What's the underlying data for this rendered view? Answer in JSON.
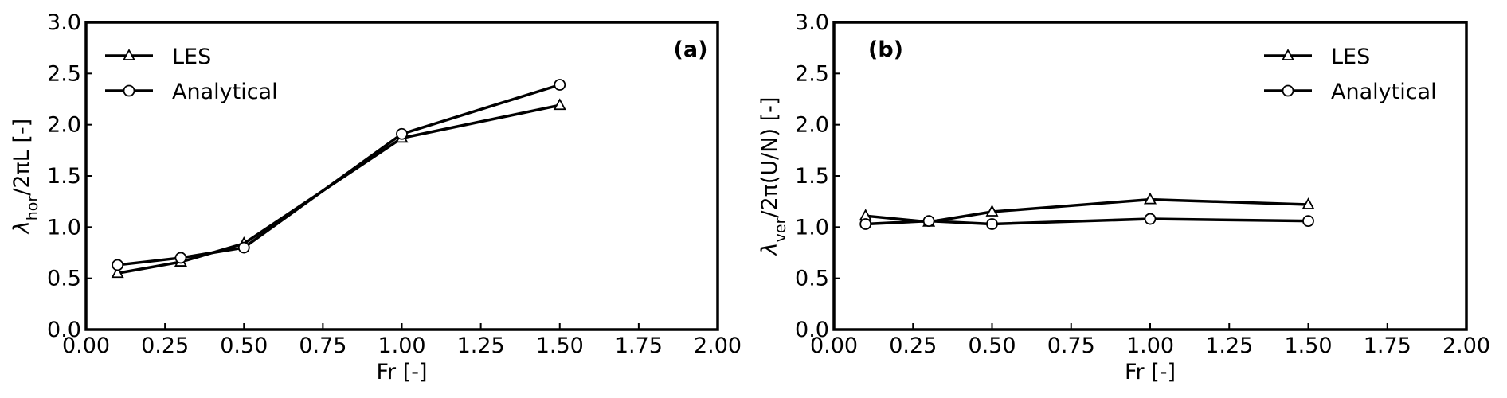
{
  "chart_data": [
    {
      "type": "line",
      "panel_label": "(a)",
      "xlabel": "Fr [-]",
      "ylabel": {
        "base": "λ",
        "sub": "hor",
        "rest": "/2πL [-]"
      },
      "xlim": [
        0.0,
        2.0
      ],
      "ylim": [
        0.0,
        3.0
      ],
      "xticks": [
        "0.00",
        "0.25",
        "0.50",
        "0.75",
        "1.00",
        "1.25",
        "1.50",
        "1.75",
        "2.00"
      ],
      "yticks": [
        "0.0",
        "0.5",
        "1.0",
        "1.5",
        "2.0",
        "2.5",
        "3.0"
      ],
      "grid": false,
      "legend_position": "top-left",
      "series": [
        {
          "name": "LES",
          "marker": "triangle",
          "x": [
            0.1,
            0.3,
            0.5,
            1.0,
            1.5
          ],
          "y": [
            0.55,
            0.66,
            0.84,
            1.87,
            2.19
          ]
        },
        {
          "name": "Analytical",
          "marker": "circle",
          "x": [
            0.1,
            0.3,
            0.5,
            1.0,
            1.5
          ],
          "y": [
            0.63,
            0.7,
            0.8,
            1.91,
            2.39
          ]
        }
      ]
    },
    {
      "type": "line",
      "panel_label": "(b)",
      "xlabel": "Fr [-]",
      "ylabel": {
        "base": "λ",
        "sub": "ver",
        "rest": "/2π(U/N) [-]"
      },
      "xlim": [
        0.0,
        2.0
      ],
      "ylim": [
        0.0,
        3.0
      ],
      "xticks": [
        "0.00",
        "0.25",
        "0.50",
        "0.75",
        "1.00",
        "1.25",
        "1.50",
        "1.75",
        "2.00"
      ],
      "yticks": [
        "0.0",
        "0.5",
        "1.0",
        "1.5",
        "2.0",
        "2.5",
        "3.0"
      ],
      "grid": false,
      "legend_position": "top-right",
      "series": [
        {
          "name": "LES",
          "marker": "triangle",
          "x": [
            0.1,
            0.3,
            0.5,
            1.0,
            1.5
          ],
          "y": [
            1.11,
            1.05,
            1.15,
            1.27,
            1.22
          ]
        },
        {
          "name": "Analytical",
          "marker": "circle",
          "x": [
            0.1,
            0.3,
            0.5,
            1.0,
            1.5
          ],
          "y": [
            1.03,
            1.06,
            1.03,
            1.08,
            1.06
          ]
        }
      ]
    }
  ]
}
